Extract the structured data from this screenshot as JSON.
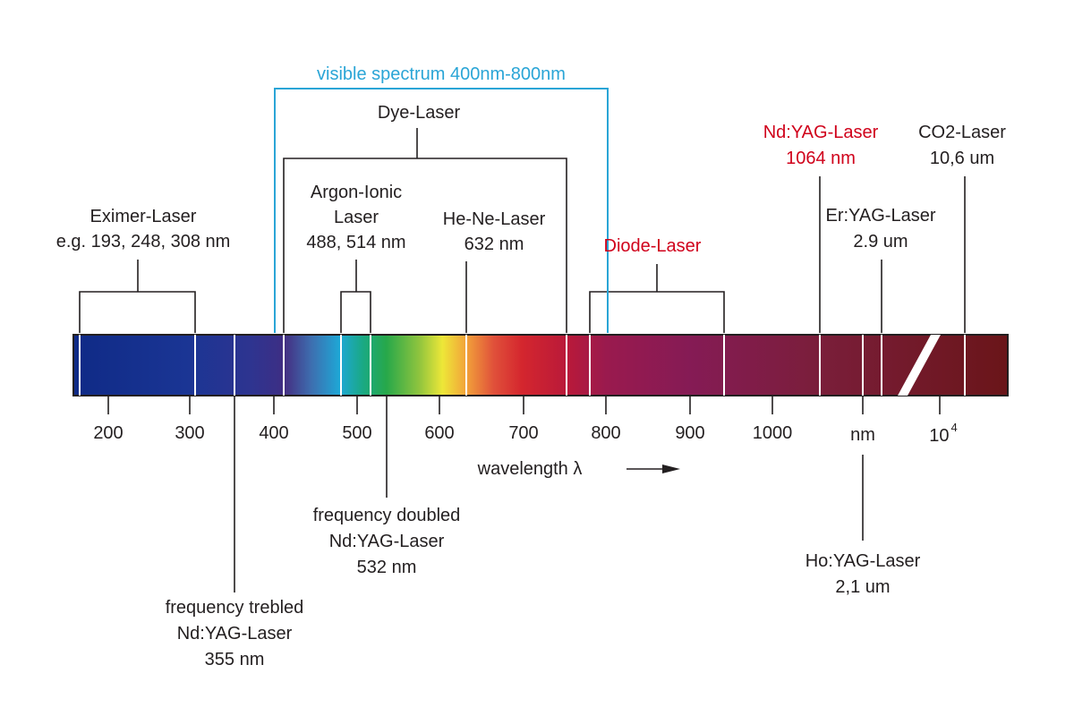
{
  "visible_bracket": {
    "label": "visible spectrum 400nm-800nm",
    "color": "#2aa5d6"
  },
  "lasers": {
    "dye": {
      "label": "Dye-Laser"
    },
    "argon": {
      "line1": "Argon-Ionic",
      "line2": "Laser",
      "line3": "488, 514 nm"
    },
    "hene": {
      "line1": "He-Ne-Laser",
      "line2": "632 nm"
    },
    "eximer": {
      "line1": "Eximer-Laser",
      "line2": "e.g. 193, 248, 308 nm"
    },
    "diode": {
      "label": "Diode-Laser",
      "color": "#d0021b"
    },
    "ndyag": {
      "line1": "Nd:YAG-Laser",
      "line2": "1064 nm",
      "color": "#d0021b"
    },
    "co2": {
      "line1": "CO2-Laser",
      "line2": "10,6 um"
    },
    "eryag": {
      "line1": "Er:YAG-Laser",
      "line2": "2.9 um"
    },
    "freq_doubled": {
      "line1": "frequency doubled",
      "line2": "Nd:YAG-Laser",
      "line3": "532 nm"
    },
    "freq_trebled": {
      "line1": "frequency trebled",
      "line2": "Nd:YAG-Laser",
      "line3": "355 nm"
    },
    "hoyag": {
      "line1": "Ho:YAG-Laser",
      "line2": "2,1 um"
    }
  },
  "axis": {
    "ticks": [
      "200",
      "300",
      "400",
      "500",
      "600",
      "700",
      "800",
      "900",
      "1000",
      "nm"
    ],
    "tick_extra_base": "10",
    "tick_extra_exp": "4",
    "wavelength_label": "wavelength λ"
  }
}
